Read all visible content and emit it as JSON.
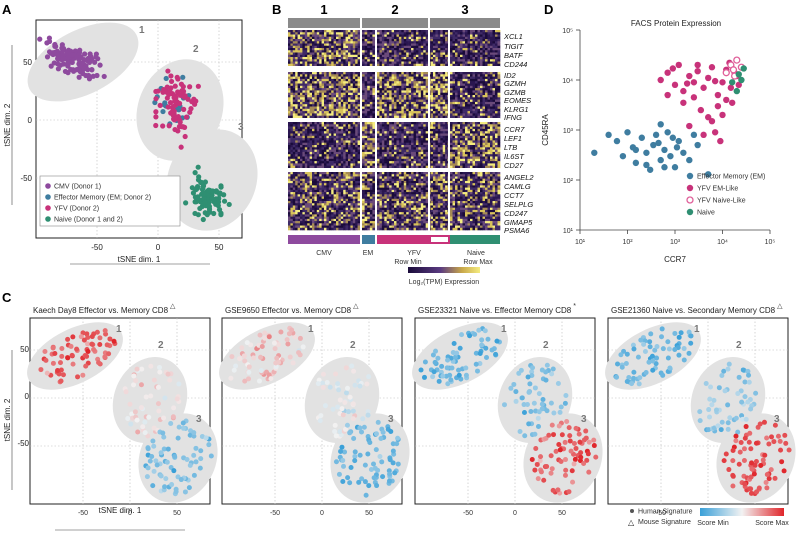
{
  "panels": {
    "a": {
      "label": "A",
      "xlabel": "tSNE dim. 1",
      "ylabel": "tSNE dim. 2",
      "xticks": [
        "-50",
        "0",
        "50"
      ],
      "yticks": [
        "50",
        "0",
        "-50"
      ],
      "cluster_numbers": [
        "1",
        "2",
        "3"
      ],
      "legend": [
        {
          "label": "CMV (Donor 1)",
          "color": "#8e4a9e"
        },
        {
          "label": "Effector Memory (EM; Donor 2)",
          "color": "#3f7da0"
        },
        {
          "label": "YFV (Donor 2)",
          "color": "#c8327a"
        },
        {
          "label": "Naive (Donor 1 and 2)",
          "color": "#2f8f72"
        }
      ]
    },
    "b": {
      "label": "B",
      "clusters": [
        "1",
        "2",
        "3"
      ],
      "genes": [
        "XCL1",
        "TIGIT",
        "BATF",
        "CD244",
        "ID2",
        "GZMH",
        "GZMB",
        "EOMES",
        "KLRG1",
        "IFNG",
        "CCR7",
        "LEF1",
        "LTB",
        "IL6ST",
        "CD27",
        "ANGEL2",
        "CAMLG",
        "CCT7",
        "SELPLG",
        "CD247",
        "GIMAP5",
        "PSMA6"
      ],
      "groups": [
        {
          "label": "CMV",
          "color": "#8e4a9e"
        },
        {
          "label": "EM",
          "color": "#3f7da0"
        },
        {
          "label": "YFV",
          "color": "#c8327a"
        },
        {
          "label": "Naive",
          "color": "#2f8f72"
        }
      ],
      "scale_min": "Row Min",
      "scale_max": "Row Max",
      "scale_label": "Log₂(TPM) Expression"
    },
    "c": {
      "label": "C",
      "xlabel": "tSNE dim. 1",
      "ylabel": "tSNE dim. 2",
      "xticks": [
        "-50",
        "0",
        "50"
      ],
      "yticks": [
        "50",
        "0",
        "-50"
      ],
      "subpanels": [
        {
          "title": "Kaech Day8 Effector vs. Memory CD8",
          "marker": "△"
        },
        {
          "title": "GSE9650 Effector vs. Memory CD8",
          "marker": "△"
        },
        {
          "title": "GSE23321 Naive vs. Effector Memory CD8",
          "marker": "*"
        },
        {
          "title": "GSE21360 Naive vs. Secondary Memory CD8",
          "marker": "△"
        }
      ],
      "legend": {
        "human": "Human Signature",
        "mouse": "Mouse Signature",
        "score_min": "Score Min",
        "score_max": "Score Max"
      }
    },
    "d": {
      "label": "D",
      "title": "FACS Protein Expression",
      "xlabel": "CCR7",
      "ylabel": "CD45RA",
      "ticks": [
        "10¹",
        "10²",
        "10³",
        "10⁴",
        "10⁵"
      ],
      "legend": [
        {
          "label": "Effector Memory (EM)",
          "color": "#3f7da0"
        },
        {
          "label": "YFV EM-Like",
          "color": "#c8327a"
        },
        {
          "label": "YFV Naive-Like",
          "color": "#e0609a"
        },
        {
          "label": "Naive",
          "color": "#2f8f72"
        }
      ]
    }
  },
  "chart_data": [
    {
      "type": "scatter",
      "panel": "A",
      "title": "",
      "xlabel": "tSNE dim. 1",
      "ylabel": "tSNE dim. 2",
      "xlim": [
        -90,
        75
      ],
      "ylim": [
        -75,
        75
      ],
      "series": [
        {
          "name": "CMV (Donor 1)",
          "color": "#8e4a9e",
          "center": [
            -60,
            48
          ],
          "spread": [
            22,
            12
          ],
          "n": 120
        },
        {
          "name": "Effector Memory (EM; Donor 2)",
          "color": "#3f7da0",
          "center": [
            20,
            15
          ],
          "spread": [
            16,
            18
          ],
          "n": 22
        },
        {
          "name": "YFV (Donor 2)",
          "color": "#c8327a",
          "center": [
            22,
            18
          ],
          "spread": [
            18,
            22
          ],
          "n": 80
        },
        {
          "name": "Naive (Donor 1 and 2)",
          "color": "#2f8f72",
          "center": [
            48,
            -48
          ],
          "spread": [
            15,
            16
          ],
          "n": 90
        }
      ]
    },
    {
      "type": "scatter",
      "panel": "D",
      "title": "FACS Protein Expression",
      "xlabel": "CCR7",
      "ylabel": "CD45RA",
      "xscale": "log",
      "yscale": "log",
      "xlim": [
        10,
        100000
      ],
      "ylim": [
        10,
        100000
      ],
      "series": [
        {
          "name": "Effector Memory (EM)",
          "points": [
            [
              20,
              350
            ],
            [
              40,
              800
            ],
            [
              60,
              600
            ],
            [
              80,
              300
            ],
            [
              100,
              900
            ],
            [
              130,
              450
            ],
            [
              150,
              220
            ],
            [
              200,
              700
            ],
            [
              250,
              350
            ],
            [
              300,
              160
            ],
            [
              350,
              500
            ],
            [
              400,
              800
            ],
            [
              450,
              550
            ],
            [
              500,
              250
            ],
            [
              600,
              400
            ],
            [
              700,
              900
            ],
            [
              800,
              300
            ],
            [
              1000,
              180
            ],
            [
              1200,
              600
            ],
            [
              1500,
              350
            ],
            [
              2000,
              250
            ],
            [
              3000,
              500
            ],
            [
              5000,
              130
            ],
            [
              500,
              1300
            ],
            [
              250,
              200
            ],
            [
              900,
              700
            ],
            [
              150,
              400
            ],
            [
              600,
              180
            ],
            [
              2500,
              800
            ],
            [
              1100,
              450
            ]
          ]
        },
        {
          "name": "YFV EM-Like",
          "points": [
            [
              500,
              10000
            ],
            [
              700,
              14000
            ],
            [
              1000,
              8000
            ],
            [
              1200,
              20000
            ],
            [
              1500,
              6000
            ],
            [
              2000,
              12000
            ],
            [
              2500,
              9000
            ],
            [
              3000,
              15000
            ],
            [
              4000,
              7000
            ],
            [
              5000,
              11000
            ],
            [
              6000,
              18000
            ],
            [
              8000,
              5000
            ],
            [
              10000,
              9000
            ],
            [
              12000,
              16000
            ],
            [
              15000,
              7000
            ],
            [
              20000,
              12000
            ],
            [
              3500,
              2500
            ],
            [
              6000,
              1500
            ],
            [
              8000,
              3000
            ],
            [
              10000,
              2000
            ],
            [
              12000,
              4000
            ],
            [
              2000,
              1200
            ],
            [
              4000,
              800
            ],
            [
              5000,
              1800
            ],
            [
              7000,
              900
            ],
            [
              9000,
              600
            ],
            [
              700,
              5000
            ],
            [
              1500,
              3500
            ],
            [
              2500,
              4500
            ],
            [
              1800,
              8500
            ],
            [
              900,
              17000
            ],
            [
              14000,
              22000
            ],
            [
              18000,
              14000
            ],
            [
              22000,
              8000
            ],
            [
              3000,
              20000
            ],
            [
              7000,
              9500
            ],
            [
              16000,
              3500
            ]
          ]
        },
        {
          "name": "YFV Naive-Like",
          "points": [
            [
              12000,
              14000
            ],
            [
              15000,
              20000
            ],
            [
              18000,
              12000
            ],
            [
              20000,
              25000
            ],
            [
              25000,
              18000
            ],
            [
              17000,
              16000
            ]
          ]
        },
        {
          "name": "Naive",
          "points": [
            [
              16000,
              9000
            ],
            [
              22000,
              13000
            ],
            [
              28000,
              17000
            ],
            [
              20000,
              6000
            ],
            [
              25000,
              10000
            ]
          ]
        }
      ]
    },
    {
      "type": "heatmap",
      "panel": "B",
      "rows": [
        "XCL1",
        "TIGIT",
        "BATF",
        "CD244",
        "ID2",
        "GZMH",
        "GZMB",
        "EOMES",
        "KLRG1",
        "IFNG",
        "CCR7",
        "LEF1",
        "LTB",
        "IL6ST",
        "CD27",
        "ANGEL2",
        "CAMLG",
        "CCT7",
        "SELPLG",
        "CD247",
        "GIMAP5",
        "PSMA6"
      ],
      "column_groups": [
        "CMV",
        "EM",
        "YFV",
        "Naive"
      ],
      "column_clusters": [
        "1",
        "2",
        "3"
      ],
      "colorscale": [
        "#1a0b3a",
        "#5a3a80",
        "#c9a84a",
        "#f4ec80"
      ]
    }
  ]
}
